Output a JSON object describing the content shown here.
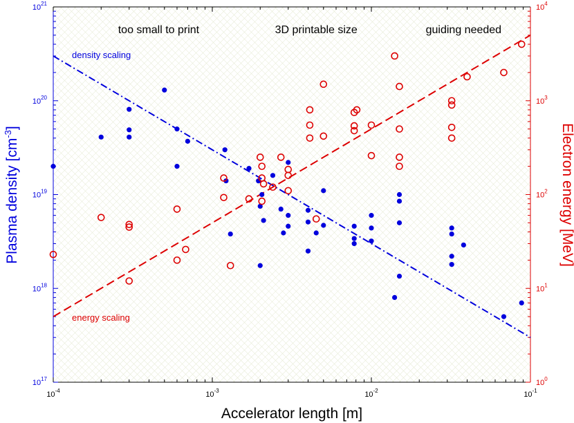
{
  "chart_data": {
    "type": "scatter",
    "title": "",
    "xlabel": "Accelerator length [m]",
    "ylabel_left": "Plasma density [cm⁻³]",
    "ylabel_left_main": "Plasma density [cm",
    "ylabel_left_sup": "-3",
    "ylabel_left_end": "]",
    "ylabel_right": "Electron energy [MeV]",
    "x_scale": "log",
    "xlim": [
      0.0001,
      0.1
    ],
    "ylim_left": [
      1e+17,
      1e+21
    ],
    "ylim_right": [
      1,
      10000
    ],
    "x_ticks": [
      {
        "base": "10",
        "exp": "-4",
        "value": 0.0001
      },
      {
        "base": "10",
        "exp": "-3",
        "value": 0.001
      },
      {
        "base": "10",
        "exp": "-2",
        "value": 0.01
      },
      {
        "base": "10",
        "exp": "-1",
        "value": 0.1
      }
    ],
    "y_left_ticks": [
      {
        "base": "10",
        "exp": "17",
        "value": 1e+17
      },
      {
        "base": "10",
        "exp": "18",
        "value": 1e+18
      },
      {
        "base": "10",
        "exp": "19",
        "value": 1e+19
      },
      {
        "base": "10",
        "exp": "20",
        "value": 1e+20
      },
      {
        "base": "10",
        "exp": "21",
        "value": 1e+21
      }
    ],
    "y_right_ticks": [
      {
        "base": "10",
        "exp": "0",
        "value": 1
      },
      {
        "base": "10",
        "exp": "1",
        "value": 10
      },
      {
        "base": "10",
        "exp": "2",
        "value": 100
      },
      {
        "base": "10",
        "exp": "3",
        "value": 1000
      },
      {
        "base": "10",
        "exp": "4",
        "value": 10000
      }
    ],
    "regions": [
      {
        "label": "too small to print",
        "x": 0.00046
      },
      {
        "label": "3D printable size",
        "x": 0.0045
      },
      {
        "label": "guiding needed",
        "x": 0.038
      }
    ],
    "colors": {
      "density": "#0000dd",
      "energy": "#dd0000",
      "hatch": "#e8ecd8"
    },
    "density_scaling": {
      "label": "density scaling",
      "x": [
        0.0001,
        0.1
      ],
      "y": [
        3e+20,
        3e+17
      ]
    },
    "energy_scaling": {
      "label": "energy scaling",
      "x": [
        0.0001,
        0.1
      ],
      "y": [
        5,
        5000
      ]
    },
    "series": [
      {
        "name": "Plasma density",
        "axis": "left",
        "marker": "filled-circle",
        "points": [
          [
            0.0001,
            2e+19
          ],
          [
            0.0002,
            4.1e+19
          ],
          [
            0.0003,
            8.1e+19
          ],
          [
            0.0003,
            4.9e+19
          ],
          [
            0.0003,
            4.1e+19
          ],
          [
            0.0005,
            1.3e+20
          ],
          [
            0.0006,
            5e+19
          ],
          [
            0.0006,
            2e+19
          ],
          [
            0.0007,
            3.7e+19
          ],
          [
            0.0012,
            3e+19
          ],
          [
            0.00122,
            1.4e+19
          ],
          [
            0.0013,
            3.8e+18
          ],
          [
            0.0017,
            1.9e+19
          ],
          [
            0.00195,
            1.4e+19
          ],
          [
            0.002,
            7.5e+18
          ],
          [
            0.002,
            1.75e+18
          ],
          [
            0.00205,
            1e+19
          ],
          [
            0.0021,
            5.3e+18
          ],
          [
            0.0024,
            1.6e+19
          ],
          [
            0.0027,
            7e+18
          ],
          [
            0.0028,
            3.9e+18
          ],
          [
            0.003,
            2.2e+19
          ],
          [
            0.003,
            6e+18
          ],
          [
            0.003,
            4.6e+18
          ],
          [
            0.004,
            6.8e+18
          ],
          [
            0.004,
            5.1e+18
          ],
          [
            0.004,
            2.5e+18
          ],
          [
            0.0045,
            3.9e+18
          ],
          [
            0.005,
            1.1e+19
          ],
          [
            0.005,
            4.7e+18
          ],
          [
            0.0078,
            4.6e+18
          ],
          [
            0.0078,
            3.4e+18
          ],
          [
            0.0078,
            3e+18
          ],
          [
            0.01,
            6e+18
          ],
          [
            0.01,
            4.4e+18
          ],
          [
            0.01,
            3.2e+18
          ],
          [
            0.014,
            8e+17
          ],
          [
            0.015,
            1e+19
          ],
          [
            0.015,
            8.5e+18
          ],
          [
            0.015,
            5e+18
          ],
          [
            0.015,
            1.35e+18
          ],
          [
            0.032,
            4.4e+18
          ],
          [
            0.032,
            3.8e+18
          ],
          [
            0.032,
            2.2e+18
          ],
          [
            0.032,
            1.8e+18
          ],
          [
            0.038,
            2.9e+18
          ],
          [
            0.068,
            5e+17
          ],
          [
            0.088,
            7e+17
          ]
        ]
      },
      {
        "name": "Electron energy",
        "axis": "right",
        "marker": "open-circle",
        "points": [
          [
            0.0001,
            23
          ],
          [
            0.0002,
            57
          ],
          [
            0.0003,
            48
          ],
          [
            0.0003,
            45
          ],
          [
            0.0003,
            12
          ],
          [
            0.0006,
            70
          ],
          [
            0.0006,
            20
          ],
          [
            0.00068,
            26
          ],
          [
            0.00118,
            150
          ],
          [
            0.00118,
            93
          ],
          [
            0.0013,
            17.5
          ],
          [
            0.0017,
            90
          ],
          [
            0.002,
            250
          ],
          [
            0.00205,
            200
          ],
          [
            0.00205,
            150
          ],
          [
            0.0021,
            130
          ],
          [
            0.00205,
            85
          ],
          [
            0.0024,
            120
          ],
          [
            0.0027,
            250
          ],
          [
            0.003,
            185
          ],
          [
            0.003,
            160
          ],
          [
            0.003,
            110
          ],
          [
            0.0045,
            55
          ],
          [
            0.0041,
            800
          ],
          [
            0.0041,
            550
          ],
          [
            0.0041,
            400
          ],
          [
            0.005,
            1500
          ],
          [
            0.005,
            420
          ],
          [
            0.0078,
            750
          ],
          [
            0.0081,
            800
          ],
          [
            0.0078,
            540
          ],
          [
            0.0078,
            480
          ],
          [
            0.01,
            550
          ],
          [
            0.01,
            260
          ],
          [
            0.014,
            3000
          ],
          [
            0.015,
            1420
          ],
          [
            0.015,
            500
          ],
          [
            0.015,
            250
          ],
          [
            0.015,
            200
          ],
          [
            0.032,
            1000
          ],
          [
            0.032,
            900
          ],
          [
            0.032,
            520
          ],
          [
            0.032,
            400
          ],
          [
            0.04,
            1800
          ],
          [
            0.068,
            2000
          ],
          [
            0.088,
            4000
          ]
        ]
      }
    ]
  }
}
